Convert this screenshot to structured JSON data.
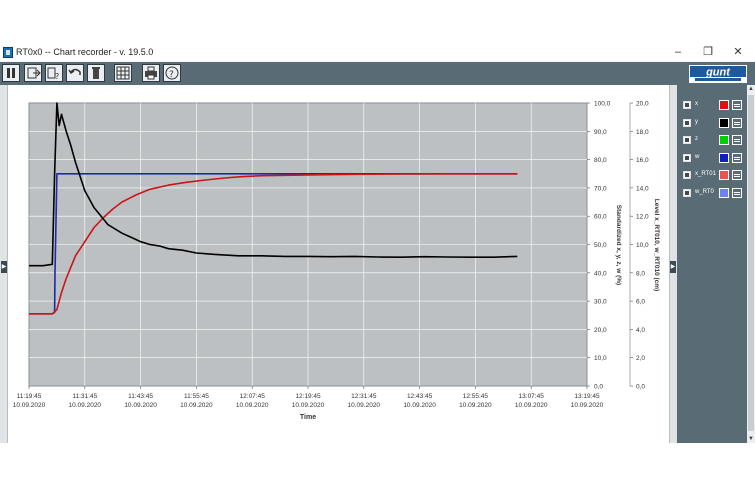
{
  "window": {
    "title": "RT0x0  --  Chart recorder - v. 19.5.0"
  },
  "toolbar": {
    "buttons": [
      "pause-icon",
      "export-icon",
      "help-query-icon",
      "undo-icon",
      "delete-icon",
      "grid-icon",
      "print-icon",
      "help-icon"
    ],
    "logo_text": "gunt"
  },
  "legend": [
    {
      "label": "x",
      "color": "#e01010"
    },
    {
      "label": "y",
      "color": "#000000"
    },
    {
      "label": "z",
      "color": "#00d000"
    },
    {
      "label": "w",
      "color": "#1020c0"
    },
    {
      "label": "x_RT01",
      "color": "#f05050"
    },
    {
      "label": "w_RT0",
      "color": "#7080f0"
    }
  ],
  "chart_data": {
    "type": "line",
    "xlabel": "Time",
    "x_ticks": [
      [
        "11:19:45",
        "10.09.2020"
      ],
      [
        "11:31:45",
        "10.09.2020"
      ],
      [
        "11:43:45",
        "10.09.2020"
      ],
      [
        "11:55:45",
        "10.09.2020"
      ],
      [
        "12:07:45",
        "10.09.2020"
      ],
      [
        "12:19:45",
        "10.09.2020"
      ],
      [
        "12:31:45",
        "10.09.2020"
      ],
      [
        "12:43:45",
        "10.09.2020"
      ],
      [
        "12:55:45",
        "10.09.2020"
      ],
      [
        "13:07:45",
        "10.09.2020"
      ],
      [
        "13:19:45",
        "10.09.2020"
      ]
    ],
    "y1_label": "Standardized  x, y, z, w  (%)",
    "y1_ticks": [
      "0,0",
      "10,0",
      "20,0",
      "30,0",
      "40,0",
      "50,0",
      "60,0",
      "70,0",
      "80,0",
      "90,0",
      "100,0"
    ],
    "y1lim": [
      0,
      100
    ],
    "y2_label": "Level  x_RT010, w_RT010  (cm)",
    "y2_ticks": [
      "0,0",
      "2,0",
      "4,0",
      "6,0",
      "8,0",
      "10,0",
      "12,0",
      "14,0",
      "16,0",
      "18,0",
      "20,0"
    ],
    "y2lim": [
      0,
      20
    ],
    "xlim": [
      0,
      120
    ],
    "grid": true,
    "series": [
      {
        "name": "w",
        "color": "#1a2aa8",
        "x": [
          0,
          5,
          5.5,
          5.6,
          6,
          10,
          20,
          40,
          60,
          80,
          100,
          105
        ],
        "y": [
          25.5,
          25.5,
          26,
          40,
          75,
          75,
          75,
          75,
          75,
          75,
          75,
          75
        ]
      },
      {
        "name": "x",
        "color": "#cc1515",
        "x": [
          0,
          5,
          6,
          7,
          8,
          10,
          12,
          14,
          16,
          18,
          20,
          23,
          26,
          30,
          34,
          38,
          42,
          46,
          50,
          60,
          70,
          80,
          90,
          100,
          105
        ],
        "y": [
          25.5,
          25.5,
          27,
          33,
          38,
          46,
          51,
          56,
          59.5,
          62.5,
          65,
          67.5,
          69.5,
          71,
          72,
          72.8,
          73.5,
          74,
          74.3,
          74.6,
          74.8,
          74.9,
          75,
          75,
          75
        ]
      },
      {
        "name": "y",
        "color": "#000000",
        "x": [
          0,
          3,
          5,
          5.5,
          6,
          6.5,
          7,
          8,
          9,
          10,
          11,
          12,
          13,
          14,
          15,
          16,
          17,
          18,
          20,
          22,
          24,
          26,
          28,
          30,
          33,
          36,
          40,
          45,
          50,
          55,
          60,
          65,
          70,
          75,
          80,
          85,
          90,
          95,
          100,
          105
        ],
        "y": [
          42.5,
          42.5,
          43,
          75,
          100,
          92,
          96,
          90,
          85,
          79,
          74,
          69,
          66,
          63,
          61,
          59,
          57,
          56,
          54,
          52.5,
          51,
          50,
          49.5,
          48.5,
          48,
          47,
          46.5,
          46,
          46,
          45.8,
          45.8,
          45.7,
          45.8,
          45.6,
          45.5,
          45.7,
          45.6,
          45.5,
          45.5,
          45.8
        ]
      }
    ]
  }
}
